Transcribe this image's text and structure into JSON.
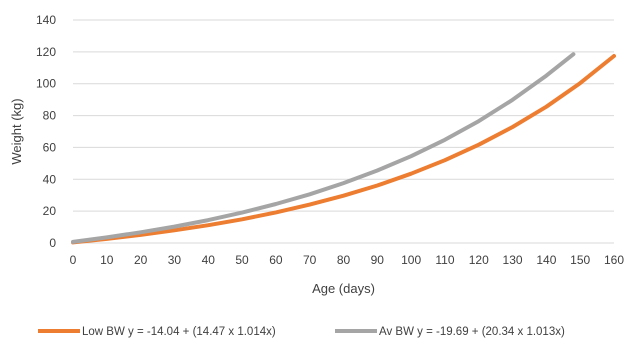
{
  "chart_data": {
    "type": "line",
    "title": "",
    "xlabel": "Age (days)",
    "ylabel": "Weight (kg)",
    "xlim": [
      0,
      160
    ],
    "ylim": [
      0,
      140
    ],
    "xticks": [
      0,
      10,
      20,
      30,
      40,
      50,
      60,
      70,
      80,
      90,
      100,
      110,
      120,
      130,
      140,
      150,
      160
    ],
    "yticks": [
      0,
      20,
      40,
      60,
      80,
      100,
      120,
      140
    ],
    "grid": "horizontal",
    "legend_position": "bottom",
    "series": [
      {
        "name": "Low BW y = -14.04 + (14.47 x 1.014x)",
        "color": "#ED7D31",
        "x": [
          0,
          10,
          20,
          30,
          40,
          50,
          60,
          70,
          80,
          90,
          100,
          110,
          120,
          130,
          140,
          150,
          160
        ],
        "y": [
          0.4,
          2.6,
          5.1,
          8.0,
          11.2,
          14.9,
          19.2,
          24.1,
          29.7,
          36.1,
          43.5,
          52.0,
          61.7,
          72.8,
          85.6,
          100.4,
          117.4
        ]
      },
      {
        "name": "Av BW y = -19.69 + (20.34 x 1.013x)",
        "color": "#A5A5A5",
        "x": [
          0,
          10,
          20,
          30,
          40,
          50,
          60,
          70,
          80,
          90,
          100,
          110,
          120,
          130,
          140,
          148
        ],
        "y": [
          0.7,
          3.5,
          6.7,
          10.3,
          14.4,
          19.1,
          24.5,
          30.6,
          37.6,
          45.5,
          54.5,
          64.8,
          76.5,
          89.9,
          105.1,
          118.5
        ]
      }
    ]
  }
}
